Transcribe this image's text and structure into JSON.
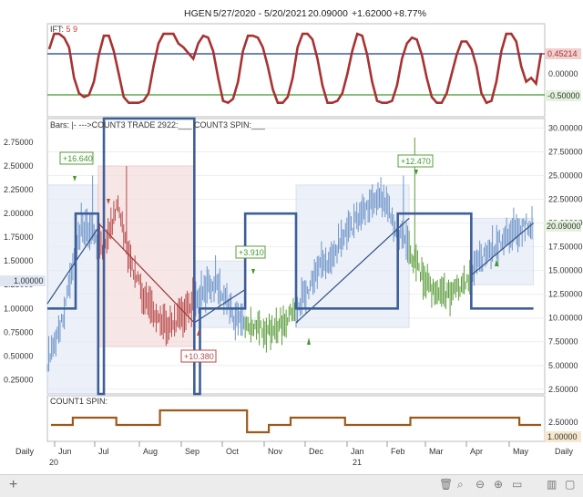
{
  "header": {
    "symbol": "HGEN",
    "range": "5/27/2020 - 5/20/2021",
    "price": "20.09000",
    "change": "+1.62000",
    "pct": "+8.77%"
  },
  "ift": {
    "label": "IFT:",
    "params": "5 9",
    "axis_ticks": [
      "0.00000"
    ],
    "value_badge": "0.45214",
    "low_badge": "-0.50000",
    "values": [
      0.55,
      0.95,
      0.95,
      0.85,
      0.6,
      -0.2,
      -0.6,
      -0.7,
      -0.65,
      -0.3,
      0.4,
      0.9,
      0.9,
      0.5,
      -0.1,
      -0.7,
      -0.85,
      -0.85,
      -0.85,
      -0.8,
      -0.6,
      0.1,
      0.7,
      0.95,
      0.95,
      0.95,
      0.7,
      0.6,
      0.45,
      0.3,
      0.7,
      0.9,
      0.85,
      0.5,
      -0.2,
      -0.8,
      -0.85,
      -0.75,
      -0.3,
      0.5,
      0.9,
      0.9,
      0.85,
      0.6,
      0.1,
      -0.5,
      -0.85,
      -0.85,
      -0.7,
      -0.2,
      0.6,
      0.95,
      0.95,
      0.8,
      0.3,
      -0.4,
      -0.85,
      -0.85,
      -0.8,
      -0.6,
      -0.1,
      0.5,
      0.95,
      0.9,
      0.4,
      -0.3,
      -0.8,
      -0.85,
      -0.85,
      -0.8,
      -0.4,
      0.3,
      0.7,
      0.85,
      0.8,
      0.4,
      -0.2,
      -0.7,
      -0.85,
      -0.85,
      -0.6,
      -0.1,
      0.4,
      0.75,
      0.75,
      0.55,
      0.1,
      -0.6,
      -0.85,
      -0.8,
      -0.3,
      0.5,
      0.95,
      0.95,
      0.75,
      0.1,
      -0.3,
      -0.2,
      -0.35,
      0.45
    ]
  },
  "main": {
    "legend": "Bars: |-     --->COUNT3 TRADE 2922:___    COUNT3 SPIN:___",
    "left_ticks": [
      "2.75000",
      "2.50000",
      "2.25000",
      "2.00000",
      "1.75000",
      "1.50000",
      "1.25000",
      "1.00000",
      "0.75000",
      "0.50000",
      "0.25000"
    ],
    "left_badge": "1.00000",
    "right_ticks": [
      "30.00000",
      "27.50000",
      "25.00000",
      "22.50000",
      "20.00000",
      "17.50000",
      "15.00000",
      "12.50000",
      "10.00000",
      "7.50000",
      "5.00000",
      "2.50000"
    ],
    "price_badge": "20.09000",
    "annotations": [
      "+16.640",
      "+10.380",
      "+3.910",
      "+12.470"
    ]
  },
  "spin": {
    "label": "COUNT1 SPIN:",
    "right_ticks": [
      "2.50000"
    ],
    "value_badge": "1.00000"
  },
  "xaxis": {
    "daily_left": "Daily",
    "daily_right": "Daily",
    "months": [
      "Jun",
      "Jul",
      "Aug",
      "Sep",
      "Oct",
      "Nov",
      "Dec",
      "Jan",
      "Feb",
      "Mar",
      "Apr",
      "May"
    ],
    "years": [
      "20",
      "21"
    ]
  },
  "colors": {
    "ift_line": "#a83232",
    "blue_line": "#3d5f99",
    "green_line": "#3f9a2a",
    "up_bar": "#6d94c8",
    "down_bar": "#b84a4a",
    "green_bar": "#5a9c3a",
    "spin_line": "#9b5a1c"
  },
  "chart_data": {
    "type": "line",
    "series": [
      {
        "name": "IFT",
        "values": [
          0.55,
          0.95,
          0.95,
          0.85,
          0.6,
          -0.2,
          -0.6,
          -0.7,
          -0.65,
          -0.3,
          0.4,
          0.9,
          0.9,
          0.5,
          -0.1,
          -0.7,
          -0.85,
          -0.85,
          -0.85,
          -0.8,
          -0.6,
          0.1,
          0.7,
          0.95,
          0.95,
          0.95,
          0.7,
          0.6,
          0.45,
          0.3
        ]
      },
      {
        "name": "COUNT3 SPIN",
        "values": [
          1,
          1,
          2,
          2,
          2,
          2,
          1,
          1,
          1,
          1,
          3,
          3,
          3,
          3,
          3,
          3,
          3,
          3,
          0,
          0,
          1,
          1,
          2,
          2,
          2,
          2,
          2,
          1,
          1,
          1,
          1,
          1,
          1,
          2,
          2,
          2,
          2,
          2,
          2,
          2,
          2,
          2,
          2,
          1,
          1,
          1
        ]
      }
    ],
    "left_ylim": [
      0.1,
      3.0
    ],
    "right_ylim": [
      2.0,
      31.0
    ],
    "price_path": [
      [
        0,
        5.5
      ],
      [
        6,
        10.5
      ],
      [
        12,
        20.0
      ],
      [
        20,
        17.0
      ],
      [
        25,
        22.0
      ],
      [
        30,
        15.0
      ],
      [
        36,
        11.0
      ],
      [
        44,
        9.0
      ],
      [
        52,
        12.0
      ],
      [
        60,
        14.0
      ],
      [
        66,
        10.0
      ],
      [
        72,
        9.0
      ],
      [
        80,
        8.5
      ],
      [
        88,
        11.0
      ],
      [
        96,
        15.0
      ],
      [
        104,
        18.0
      ],
      [
        112,
        21.0
      ],
      [
        118,
        23.0
      ],
      [
        124,
        19.0
      ],
      [
        130,
        16.0
      ],
      [
        136,
        13.0
      ],
      [
        142,
        12.5
      ],
      [
        148,
        14.0
      ],
      [
        156,
        17.0
      ],
      [
        164,
        19.0
      ],
      [
        172,
        20.09
      ]
    ],
    "trend_segments": [
      {
        "x": [
          0,
          18
        ],
        "y": [
          11.5,
          19.5
        ],
        "color": "up"
      },
      {
        "x": [
          18,
          52
        ],
        "y": [
          20.0,
          9.5
        ],
        "color": "down"
      },
      {
        "x": [
          52,
          70
        ],
        "y": [
          9.5,
          13.0
        ],
        "color": "up"
      },
      {
        "x": [
          88,
          128
        ],
        "y": [
          9.5,
          20.5
        ],
        "color": "up"
      },
      {
        "x": [
          150,
          172
        ],
        "y": [
          14.5,
          20.0
        ],
        "color": "up"
      }
    ],
    "zones": [
      {
        "x": [
          0,
          18
        ],
        "y": [
          2.0,
          24.0
        ],
        "color": "up"
      },
      {
        "x": [
          18,
          52
        ],
        "y": [
          7.0,
          26.0
        ],
        "color": "down"
      },
      {
        "x": [
          52,
          70
        ],
        "y": [
          9.0,
          16.0
        ],
        "color": "up"
      },
      {
        "x": [
          88,
          128
        ],
        "y": [
          9.0,
          24.0
        ],
        "color": "up"
      },
      {
        "x": [
          150,
          172
        ],
        "y": [
          13.5,
          20.5
        ],
        "color": "up"
      }
    ],
    "count3_trade_steps": [
      [
        0,
        1.0
      ],
      [
        10,
        2.0
      ],
      [
        18,
        0.1
      ],
      [
        20,
        3.0
      ],
      [
        52,
        0.1
      ],
      [
        54,
        1.0
      ],
      [
        70,
        2.0
      ],
      [
        88,
        1.0
      ],
      [
        124,
        2.0
      ],
      [
        150,
        1.0
      ],
      [
        172,
        1.0
      ]
    ],
    "xlim": [
      0,
      176
    ]
  }
}
